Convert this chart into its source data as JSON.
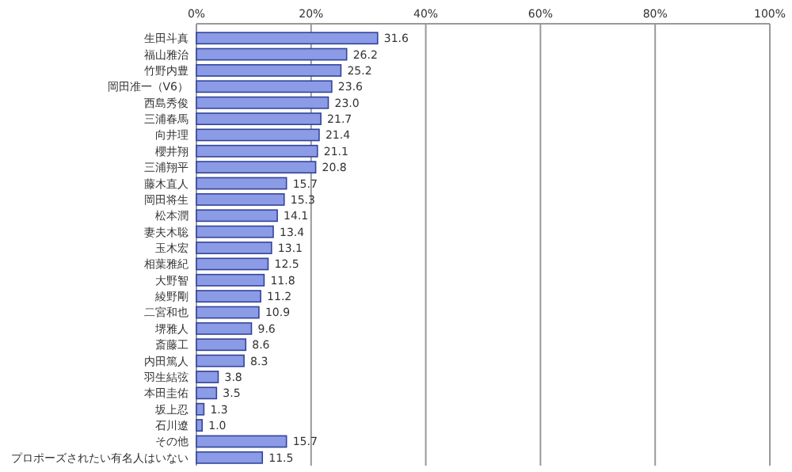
{
  "chart_data": {
    "type": "bar",
    "orientation": "horizontal",
    "grid": "x",
    "categories": [
      "生田斗真",
      "福山雅治",
      "竹野内豊",
      "岡田准一（V6）",
      "西島秀俊",
      "三浦春馬",
      "向井理",
      "櫻井翔",
      "三浦翔平",
      "藤木直人",
      "岡田将生",
      "松本潤",
      "妻夫木聡",
      "玉木宏",
      "相葉雅紀",
      "大野智",
      "綾野剛",
      "二宮和也",
      "堺雅人",
      "斎藤工",
      "内田篤人",
      "羽生結弦",
      "本田圭佑",
      "坂上忍",
      "石川遼",
      "その他",
      "プロポーズされたい有名人はいない"
    ],
    "values": [
      31.6,
      26.2,
      25.2,
      23.6,
      23.0,
      21.7,
      21.4,
      21.1,
      20.8,
      15.7,
      15.3,
      14.1,
      13.4,
      13.1,
      12.5,
      11.8,
      11.2,
      10.9,
      9.6,
      8.6,
      8.3,
      3.8,
      3.5,
      1.3,
      1.0,
      15.7,
      11.5
    ],
    "value_labels": [
      "31.6",
      "26.2",
      "25.2",
      "23.6",
      "23.0",
      "21.7",
      "21.4",
      "21.1",
      "20.8",
      "15.7",
      "15.3",
      "14.1",
      "13.4",
      "13.1",
      "12.5",
      "11.8",
      "11.2",
      "10.9",
      "9.6",
      "8.6",
      "8.3",
      "3.8",
      "3.5",
      "1.3",
      "1.0",
      "15.7",
      "11.5"
    ],
    "color": "#8c9be6",
    "xlim": [
      0,
      100
    ],
    "xticks": [
      {
        "value": 0,
        "label": "0%"
      },
      {
        "value": 20,
        "label": "20%"
      },
      {
        "value": 40,
        "label": "40%"
      },
      {
        "value": 60,
        "label": "60%"
      },
      {
        "value": 80,
        "label": "80%"
      },
      {
        "value": 100,
        "label": "100%"
      }
    ]
  }
}
